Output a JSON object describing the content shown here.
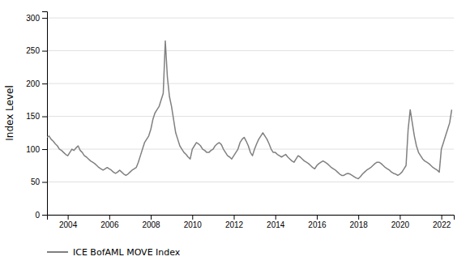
{
  "chart_data": {
    "type": "line",
    "ylabel": "Index Level",
    "x": [
      2003.0,
      2003.1,
      2003.2,
      2003.3,
      2003.4,
      2003.5,
      2003.6,
      2003.7,
      2003.8,
      2003.9,
      2004.0,
      2004.1,
      2004.2,
      2004.3,
      2004.4,
      2004.5,
      2004.6,
      2004.7,
      2004.8,
      2004.9,
      2005.0,
      2005.1,
      2005.2,
      2005.3,
      2005.4,
      2005.5,
      2005.6,
      2005.7,
      2005.8,
      2005.9,
      2006.0,
      2006.1,
      2006.2,
      2006.3,
      2006.4,
      2006.5,
      2006.6,
      2006.7,
      2006.8,
      2006.9,
      2007.0,
      2007.1,
      2007.2,
      2007.3,
      2007.4,
      2007.5,
      2007.6,
      2007.7,
      2007.8,
      2007.9,
      2008.0,
      2008.1,
      2008.2,
      2008.3,
      2008.4,
      2008.5,
      2008.6,
      2008.7,
      2008.8,
      2008.9,
      2009.0,
      2009.1,
      2009.2,
      2009.3,
      2009.4,
      2009.5,
      2009.6,
      2009.7,
      2009.8,
      2009.9,
      2010.0,
      2010.1,
      2010.2,
      2010.3,
      2010.4,
      2010.5,
      2010.6,
      2010.7,
      2010.8,
      2010.9,
      2011.0,
      2011.1,
      2011.2,
      2011.3,
      2011.4,
      2011.5,
      2011.6,
      2011.7,
      2011.8,
      2011.9,
      2012.0,
      2012.1,
      2012.2,
      2012.3,
      2012.4,
      2012.5,
      2012.6,
      2012.7,
      2012.8,
      2012.9,
      2013.0,
      2013.1,
      2013.2,
      2013.3,
      2013.4,
      2013.5,
      2013.6,
      2013.7,
      2013.8,
      2013.9,
      2014.0,
      2014.1,
      2014.2,
      2014.3,
      2014.4,
      2014.5,
      2014.6,
      2014.7,
      2014.8,
      2014.9,
      2015.0,
      2015.1,
      2015.2,
      2015.3,
      2015.4,
      2015.5,
      2015.6,
      2015.7,
      2015.8,
      2015.9,
      2016.0,
      2016.1,
      2016.2,
      2016.3,
      2016.4,
      2016.5,
      2016.6,
      2016.7,
      2016.8,
      2016.9,
      2017.0,
      2017.1,
      2017.2,
      2017.3,
      2017.4,
      2017.5,
      2017.6,
      2017.7,
      2017.8,
      2017.9,
      2018.0,
      2018.1,
      2018.2,
      2018.3,
      2018.4,
      2018.5,
      2018.6,
      2018.7,
      2018.8,
      2018.9,
      2019.0,
      2019.1,
      2019.2,
      2019.3,
      2019.4,
      2019.5,
      2019.6,
      2019.7,
      2019.8,
      2019.9,
      2020.0,
      2020.1,
      2020.2,
      2020.3,
      2020.4,
      2020.5,
      2020.6,
      2020.7,
      2020.8,
      2020.9,
      2021.0,
      2021.1,
      2021.2,
      2021.3,
      2021.4,
      2021.5,
      2021.6,
      2021.7,
      2021.8,
      2021.9,
      2022.0,
      2022.1,
      2022.2,
      2022.3,
      2022.4,
      2022.5
    ],
    "series": [
      {
        "name": "ICE BofAML MOVE Index",
        "color": "#808080",
        "values": [
          118,
          120,
          115,
          112,
          108,
          105,
          100,
          98,
          95,
          92,
          90,
          95,
          100,
          98,
          102,
          105,
          98,
          95,
          90,
          88,
          85,
          82,
          80,
          78,
          75,
          72,
          70,
          68,
          70,
          72,
          70,
          68,
          65,
          63,
          65,
          68,
          65,
          62,
          60,
          62,
          65,
          68,
          70,
          72,
          80,
          90,
          100,
          110,
          115,
          120,
          130,
          145,
          155,
          160,
          165,
          175,
          185,
          265,
          210,
          180,
          165,
          145,
          125,
          115,
          105,
          100,
          95,
          92,
          88,
          85,
          100,
          105,
          110,
          108,
          105,
          100,
          98,
          95,
          95,
          98,
          100,
          105,
          108,
          110,
          107,
          100,
          95,
          90,
          88,
          85,
          90,
          95,
          100,
          110,
          115,
          118,
          112,
          105,
          95,
          90,
          100,
          108,
          115,
          120,
          125,
          120,
          115,
          108,
          100,
          95,
          95,
          92,
          90,
          88,
          90,
          92,
          88,
          85,
          82,
          80,
          85,
          90,
          88,
          85,
          82,
          80,
          78,
          75,
          72,
          70,
          75,
          78,
          80,
          82,
          80,
          78,
          75,
          72,
          70,
          68,
          65,
          62,
          60,
          60,
          62,
          63,
          62,
          60,
          58,
          56,
          55,
          58,
          62,
          65,
          68,
          70,
          72,
          75,
          78,
          80,
          80,
          78,
          75,
          72,
          70,
          68,
          65,
          63,
          62,
          60,
          62,
          65,
          70,
          75,
          130,
          160,
          140,
          120,
          105,
          95,
          90,
          85,
          82,
          80,
          78,
          75,
          72,
          70,
          68,
          65,
          100,
          110,
          120,
          130,
          140,
          160
        ]
      }
    ],
    "xlim": [
      2003.0,
      2022.6
    ],
    "xticks": [
      2004,
      2006,
      2008,
      2010,
      2012,
      2014,
      2016,
      2018,
      2020,
      2022
    ],
    "ylim": [
      0,
      310
    ],
    "yticks": [
      0,
      50,
      100,
      150,
      200,
      250,
      300
    ],
    "grid": true,
    "legend": "bottom"
  }
}
